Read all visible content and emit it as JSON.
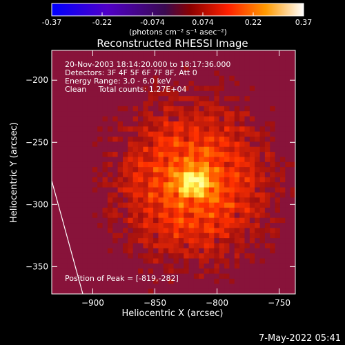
{
  "chart_data": {
    "type": "heatmap",
    "title": "Reconstructed RHESSI Image",
    "xlabel": "Heliocentric X (arcsec)",
    "ylabel": "Heliocentric Y (arcsec)",
    "xlim": [
      -933,
      -737
    ],
    "ylim": [
      -372,
      -176
    ],
    "xticks": [
      -900,
      -850,
      -800,
      -750
    ],
    "yticks": [
      -200,
      -250,
      -300,
      -350
    ],
    "colorbar": {
      "ticks": [
        "-0.37",
        "-0.22",
        "-0.074",
        "0.074",
        "0.22",
        "0.37"
      ],
      "range": [
        -0.37,
        0.37
      ],
      "unit_label": "(photons cm⁻² s⁻¹ asec⁻²)"
    },
    "annotations": [
      "20-Nov-2003 18:14:20.000 to 18:17:36.000",
      "Detectors: 3F 4F 5F 6F 7F 8F, Att 0",
      "Energy Range: 3.0 - 6.0 keV",
      "Clean     Total counts: 1.27E+04"
    ],
    "peak": {
      "label": "Position of Peak = [-819,-282]",
      "x": -819,
      "y": -282,
      "value": 0.37
    },
    "limb_line": [
      [
        -933,
        -281
      ],
      [
        -908,
        -372
      ]
    ],
    "timestamp": "7-May-2022 05:41",
    "colors": {
      "background": "#000000",
      "axes": "#ffffff",
      "colormap": [
        "#0000ff",
        "#4a00c8",
        "#5a1a8c",
        "#a01010",
        "#ff3000",
        "#ff9000",
        "#ffff60",
        "#ffffff"
      ]
    }
  }
}
